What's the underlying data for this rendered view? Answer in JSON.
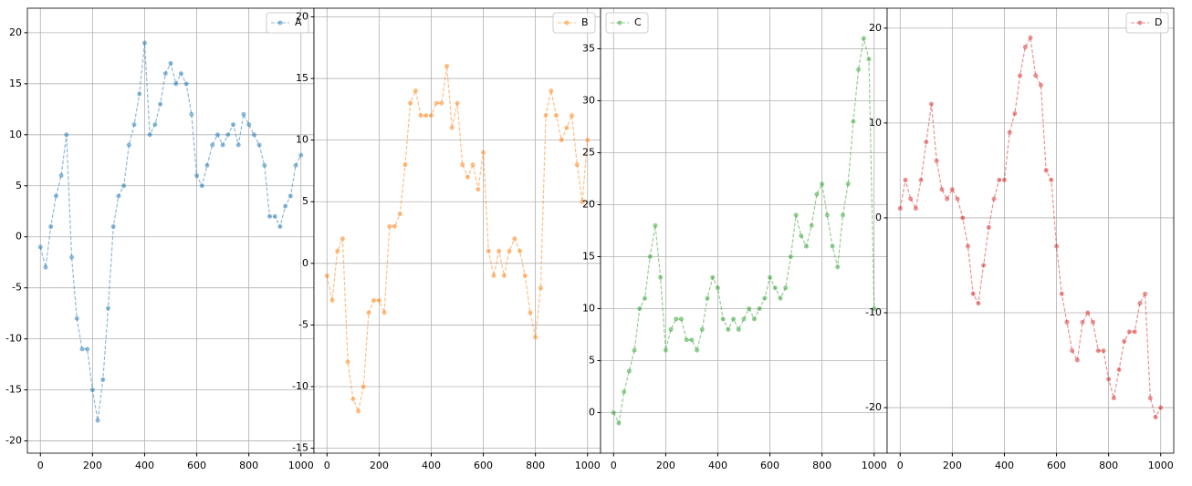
{
  "chart_data": [
    {
      "type": "line",
      "legend": "upper right",
      "grid": true,
      "x": [
        0,
        20,
        40,
        60,
        80,
        100,
        120,
        140,
        160,
        180,
        200,
        220,
        240,
        260,
        280,
        300,
        320,
        340,
        360,
        380,
        400,
        420,
        440,
        460,
        480,
        500,
        520,
        540,
        560,
        580,
        600,
        620,
        640,
        660,
        680,
        700,
        720,
        740,
        760,
        780,
        800,
        820,
        840,
        860,
        880,
        900,
        920,
        940,
        960,
        980,
        1000
      ],
      "series": [
        {
          "name": "A",
          "color": "#1f77b4",
          "values": [
            -1,
            -3,
            1,
            4,
            6,
            10,
            -2,
            -8,
            -11,
            -11,
            -15,
            -18,
            -14,
            -7,
            1,
            4,
            5,
            9,
            11,
            14,
            19,
            10,
            11,
            13,
            16,
            17,
            15,
            16,
            15,
            12,
            6,
            5,
            7,
            9,
            10,
            9,
            10,
            11,
            9,
            12,
            11,
            10,
            9,
            7,
            2,
            2,
            1,
            3,
            4,
            7,
            8
          ]
        }
      ],
      "xlim": [
        -50,
        1050
      ],
      "ylim": [
        -21.2,
        22.4
      ],
      "xticks": [
        0,
        200,
        400,
        600,
        800,
        1000
      ],
      "yticks": [
        -20,
        -15,
        -10,
        -5,
        0,
        5,
        10,
        15,
        20
      ]
    },
    {
      "type": "line",
      "legend": "upper right",
      "grid": true,
      "x": [
        0,
        20,
        40,
        60,
        80,
        100,
        120,
        140,
        160,
        180,
        200,
        220,
        240,
        260,
        280,
        300,
        320,
        340,
        360,
        380,
        400,
        420,
        440,
        460,
        480,
        500,
        520,
        540,
        560,
        580,
        600,
        620,
        640,
        660,
        680,
        700,
        720,
        740,
        760,
        780,
        800,
        820,
        840,
        860,
        880,
        900,
        920,
        940,
        960,
        980,
        1000
      ],
      "series": [
        {
          "name": "B",
          "color": "#ff7f0e",
          "values": [
            -1,
            -3,
            1,
            2,
            -8,
            -11,
            -12,
            -10,
            -4,
            -3,
            -3,
            -4,
            3,
            3,
            4,
            8,
            13,
            14,
            12,
            12,
            12,
            13,
            13,
            16,
            11,
            13,
            8,
            7,
            8,
            6,
            9,
            1,
            -1,
            1,
            -1,
            1,
            2,
            1,
            -1,
            -4,
            -6,
            -2,
            12,
            14,
            12,
            10,
            11,
            12,
            8,
            5,
            10
          ]
        }
      ],
      "xlim": [
        -50,
        1050
      ],
      "ylim": [
        -15.4,
        20.7
      ],
      "xticks": [
        0,
        200,
        400,
        600,
        800,
        1000
      ],
      "yticks": [
        -15,
        -10,
        -5,
        0,
        5,
        10,
        15,
        20
      ]
    },
    {
      "type": "line",
      "legend": "upper left",
      "grid": true,
      "x": [
        0,
        20,
        40,
        60,
        80,
        100,
        120,
        140,
        160,
        180,
        200,
        220,
        240,
        260,
        280,
        300,
        320,
        340,
        360,
        380,
        400,
        420,
        440,
        460,
        480,
        500,
        520,
        540,
        560,
        580,
        600,
        620,
        640,
        660,
        680,
        700,
        720,
        740,
        760,
        780,
        800,
        820,
        840,
        860,
        880,
        900,
        920,
        940,
        960,
        980,
        1000
      ],
      "series": [
        {
          "name": "C",
          "color": "#2ca02c",
          "values": [
            0,
            -1,
            2,
            4,
            6,
            10,
            11,
            15,
            18,
            13,
            6,
            8,
            9,
            9,
            7,
            7,
            6,
            8,
            11,
            13,
            12,
            9,
            8,
            9,
            8,
            9,
            10,
            9,
            10,
            11,
            13,
            12,
            11,
            12,
            15,
            19,
            17,
            16,
            18,
            21,
            22,
            19,
            16,
            14,
            19,
            22,
            28,
            33,
            36,
            34,
            10
          ]
        }
      ],
      "xlim": [
        -50,
        1050
      ],
      "ylim": [
        -3.9,
        38.9
      ],
      "xticks": [
        0,
        200,
        400,
        600,
        800,
        1000
      ],
      "yticks": [
        0,
        5,
        10,
        15,
        20,
        25,
        30,
        35
      ]
    },
    {
      "type": "line",
      "legend": "upper right",
      "grid": true,
      "x": [
        0,
        20,
        40,
        60,
        80,
        100,
        120,
        140,
        160,
        180,
        200,
        220,
        240,
        260,
        280,
        300,
        320,
        340,
        360,
        380,
        400,
        420,
        440,
        460,
        480,
        500,
        520,
        540,
        560,
        580,
        600,
        620,
        640,
        660,
        680,
        700,
        720,
        740,
        760,
        780,
        800,
        820,
        840,
        860,
        880,
        900,
        920,
        940,
        960,
        980,
        1000
      ],
      "series": [
        {
          "name": "D",
          "color": "#d62728",
          "values": [
            1,
            4,
            2,
            1,
            4,
            8,
            12,
            6,
            3,
            2,
            3,
            2,
            0,
            -3,
            -8,
            -9,
            -5,
            -1,
            2,
            4,
            4,
            9,
            11,
            15,
            18,
            19,
            15,
            14,
            5,
            4,
            -3,
            -8,
            -11,
            -14,
            -15,
            -11,
            -10,
            -11,
            -14,
            -14,
            -17,
            -19,
            -16,
            -13,
            -12,
            -12,
            -9,
            -8,
            -19,
            -21,
            -20
          ]
        }
      ],
      "xlim": [
        -50,
        1050
      ],
      "ylim": [
        -24.8,
        22.1
      ],
      "xticks": [
        0,
        200,
        400,
        600,
        800,
        1000
      ],
      "yticks": [
        -20,
        -10,
        0,
        10,
        20
      ]
    }
  ]
}
